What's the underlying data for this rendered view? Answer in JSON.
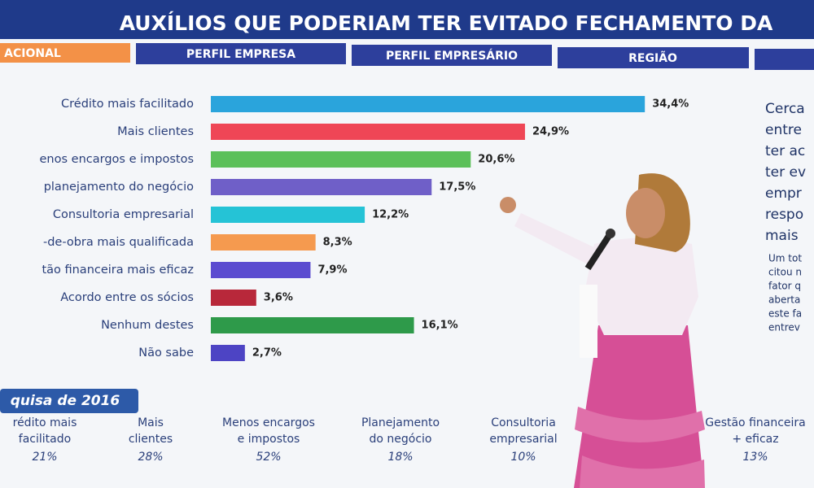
{
  "title": "AUXÍLIOS QUE PODERIAM TER EVITADO FECHAMENTO DA",
  "tabs": [
    "ACIONAL",
    "PERFIL EMPRESA",
    "PERFIL EMPRESÁRIO",
    "REGIÃO"
  ],
  "chart_data": {
    "type": "bar",
    "categories": [
      "Crédito mais facilitado",
      "Mais clientes",
      "enos encargos e impostos",
      "planejamento do negócio",
      "Consultoria empresarial",
      "-de-obra mais qualificada",
      "tão financeira mais eficaz",
      "Acordo entre os sócios",
      "Nenhum destes",
      "Não sabe"
    ],
    "values": [
      34.4,
      24.9,
      20.6,
      17.5,
      12.2,
      8.3,
      7.9,
      3.6,
      16.1,
      2.7
    ],
    "value_labels": [
      "34,4%",
      "24,9%",
      "20,6%",
      "17,5%",
      "12,2%",
      "8,3%",
      "7,9%",
      "3,6%",
      "16,1%",
      "2,7%"
    ],
    "colors": [
      "#2aa4dc",
      "#ef4656",
      "#5cc05a",
      "#6f5fc8",
      "#25c3d6",
      "#f59a4f",
      "#5b4bd0",
      "#b8283a",
      "#2e9a4a",
      "#4d44c4"
    ]
  },
  "side_text": [
    "Cerca",
    "entre",
    "ter ac",
    "ter ev",
    "empr",
    "respo",
    "mais"
  ],
  "side_note": [
    "Um tot",
    "citou n",
    "fator q",
    "aberta",
    "este fa",
    "entrev"
  ],
  "comparison": {
    "title": "quisa de 2016",
    "items": [
      [
        "rédito mais",
        "facilitado"
      ],
      [
        "Mais",
        "clientes"
      ],
      [
        "Menos encargos",
        "e impostos"
      ],
      [
        "Planejamento",
        "do negócio"
      ],
      [
        "Consultoria",
        "empresarial"
      ],
      [
        "Gestão financeira",
        "+ eficaz"
      ]
    ],
    "values": [
      21,
      28,
      52,
      18,
      10,
      13
    ],
    "value_labels": [
      "21%",
      "28%",
      "52%",
      "18%",
      "10%",
      "13%"
    ]
  }
}
